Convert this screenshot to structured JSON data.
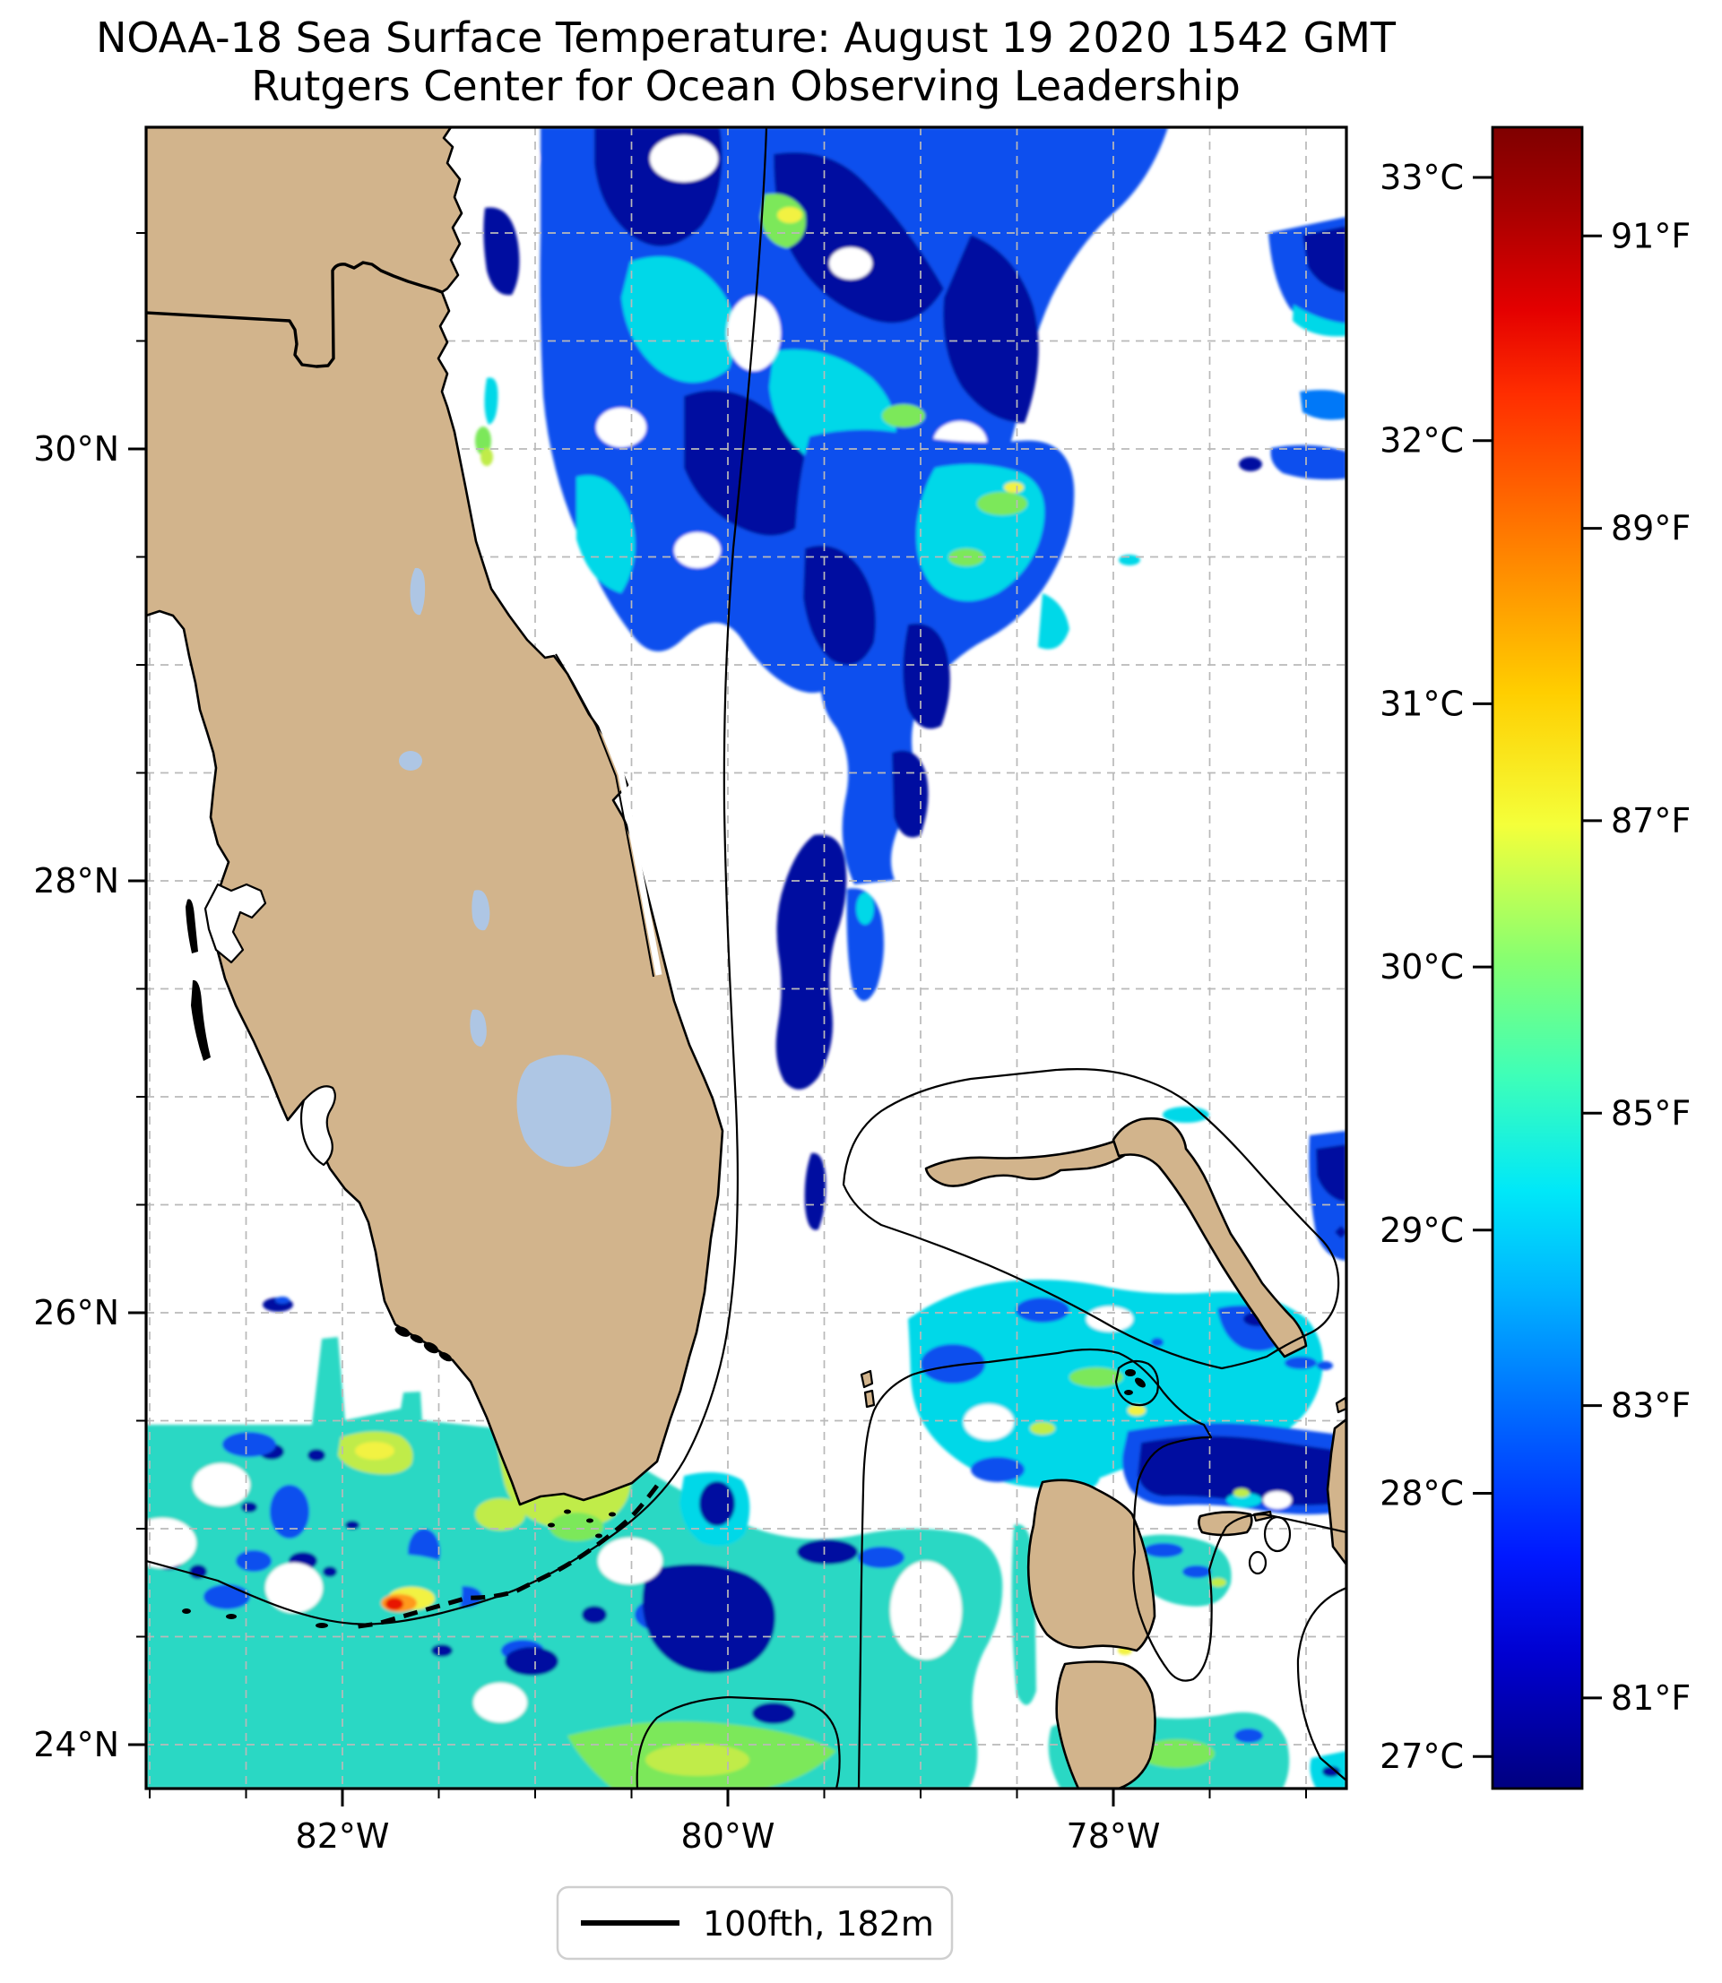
{
  "title": {
    "line1": "NOAA-18 Sea Surface Temperature: August 19 2020 1542 GMT",
    "line2": "Rutgers Center for Ocean Observing Leadership"
  },
  "axes": {
    "x_major_ticks": [
      {
        "lon_deg_w": 82,
        "label": "82°W"
      },
      {
        "lon_deg_w": 80,
        "label": "80°W"
      },
      {
        "lon_deg_w": 78,
        "label": "78°W"
      }
    ],
    "x_minor_ticks_deg_w": [
      83,
      82.5,
      81.5,
      81,
      80.5,
      79.5,
      79,
      78.5,
      77.5,
      77
    ],
    "y_major_ticks": [
      {
        "lat_deg_n": 30,
        "label": "30°N"
      },
      {
        "lat_deg_n": 28,
        "label": "28°N"
      },
      {
        "lat_deg_n": 26,
        "label": "26°N"
      },
      {
        "lat_deg_n": 24,
        "label": "24°N"
      }
    ],
    "y_minor_ticks_deg_n": [
      31,
      30.5,
      29.5,
      29,
      28.5,
      27.5,
      27,
      26.5,
      25.5,
      25,
      24.5
    ],
    "grid_lons_deg_w": [
      83,
      82.5,
      82,
      81.5,
      81,
      80.5,
      80,
      79.5,
      79,
      78.5,
      78,
      77.5,
      77
    ],
    "grid_lats_deg_n": [
      31,
      30.5,
      30,
      29.5,
      29,
      28.5,
      28,
      27.5,
      27,
      26.5,
      26,
      25.5,
      25,
      24.5,
      24
    ],
    "lon_range_deg_w": [
      83.0,
      76.8
    ],
    "lat_range_deg_n": [
      23.8,
      31.5
    ]
  },
  "colorbar": {
    "colormap": "jet",
    "range_celsius": [
      26.9,
      33.2
    ],
    "celsius_ticks": [
      {
        "value_c": 33,
        "label": "33°C"
      },
      {
        "value_c": 32,
        "label": "32°C"
      },
      {
        "value_c": 31,
        "label": "31°C"
      },
      {
        "value_c": 30,
        "label": "30°C"
      },
      {
        "value_c": 29,
        "label": "29°C"
      },
      {
        "value_c": 28,
        "label": "28°C"
      },
      {
        "value_c": 27,
        "label": "27°C"
      }
    ],
    "fahrenheit_ticks": [
      {
        "value_f": 91,
        "label": "91°F"
      },
      {
        "value_f": 89,
        "label": "89°F"
      },
      {
        "value_f": 87,
        "label": "87°F"
      },
      {
        "value_f": 85,
        "label": "85°F"
      },
      {
        "value_f": 83,
        "label": "83°F"
      },
      {
        "value_f": 81,
        "label": "81°F"
      }
    ],
    "gradient_stops": [
      {
        "at": 0.0,
        "color": "#7f0000"
      },
      {
        "at": 0.05,
        "color": "#a80000"
      },
      {
        "at": 0.11,
        "color": "#e40000"
      },
      {
        "at": 0.16,
        "color": "#ff2d00"
      },
      {
        "at": 0.25,
        "color": "#ff7e00"
      },
      {
        "at": 0.34,
        "color": "#ffce00"
      },
      {
        "at": 0.42,
        "color": "#f4ff3a"
      },
      {
        "at": 0.5,
        "color": "#88ff70"
      },
      {
        "at": 0.57,
        "color": "#3fffb7"
      },
      {
        "at": 0.64,
        "color": "#00e8f8"
      },
      {
        "at": 0.7,
        "color": "#00b4ff"
      },
      {
        "at": 0.78,
        "color": "#0064ff"
      },
      {
        "at": 0.86,
        "color": "#0018ff"
      },
      {
        "at": 0.92,
        "color": "#0000d0"
      },
      {
        "at": 1.0,
        "color": "#000080"
      }
    ]
  },
  "legend": {
    "items": [
      {
        "symbol": "black-line",
        "label": "100fth, 182m"
      }
    ]
  },
  "map_palette": {
    "land": "#d2b48c",
    "lake": "#aec6e4",
    "ocean": "#ffffff",
    "navy": "#0510a0",
    "royal": "#0a50ee",
    "blue": "#0078f8",
    "cyan": "#00d8e8",
    "turq": "#2cd8c4",
    "green": "#7ce85a",
    "ygreen": "#c0ec48",
    "yellow": "#f2f243",
    "orange": "#ff9a1e",
    "red": "#e81600"
  }
}
